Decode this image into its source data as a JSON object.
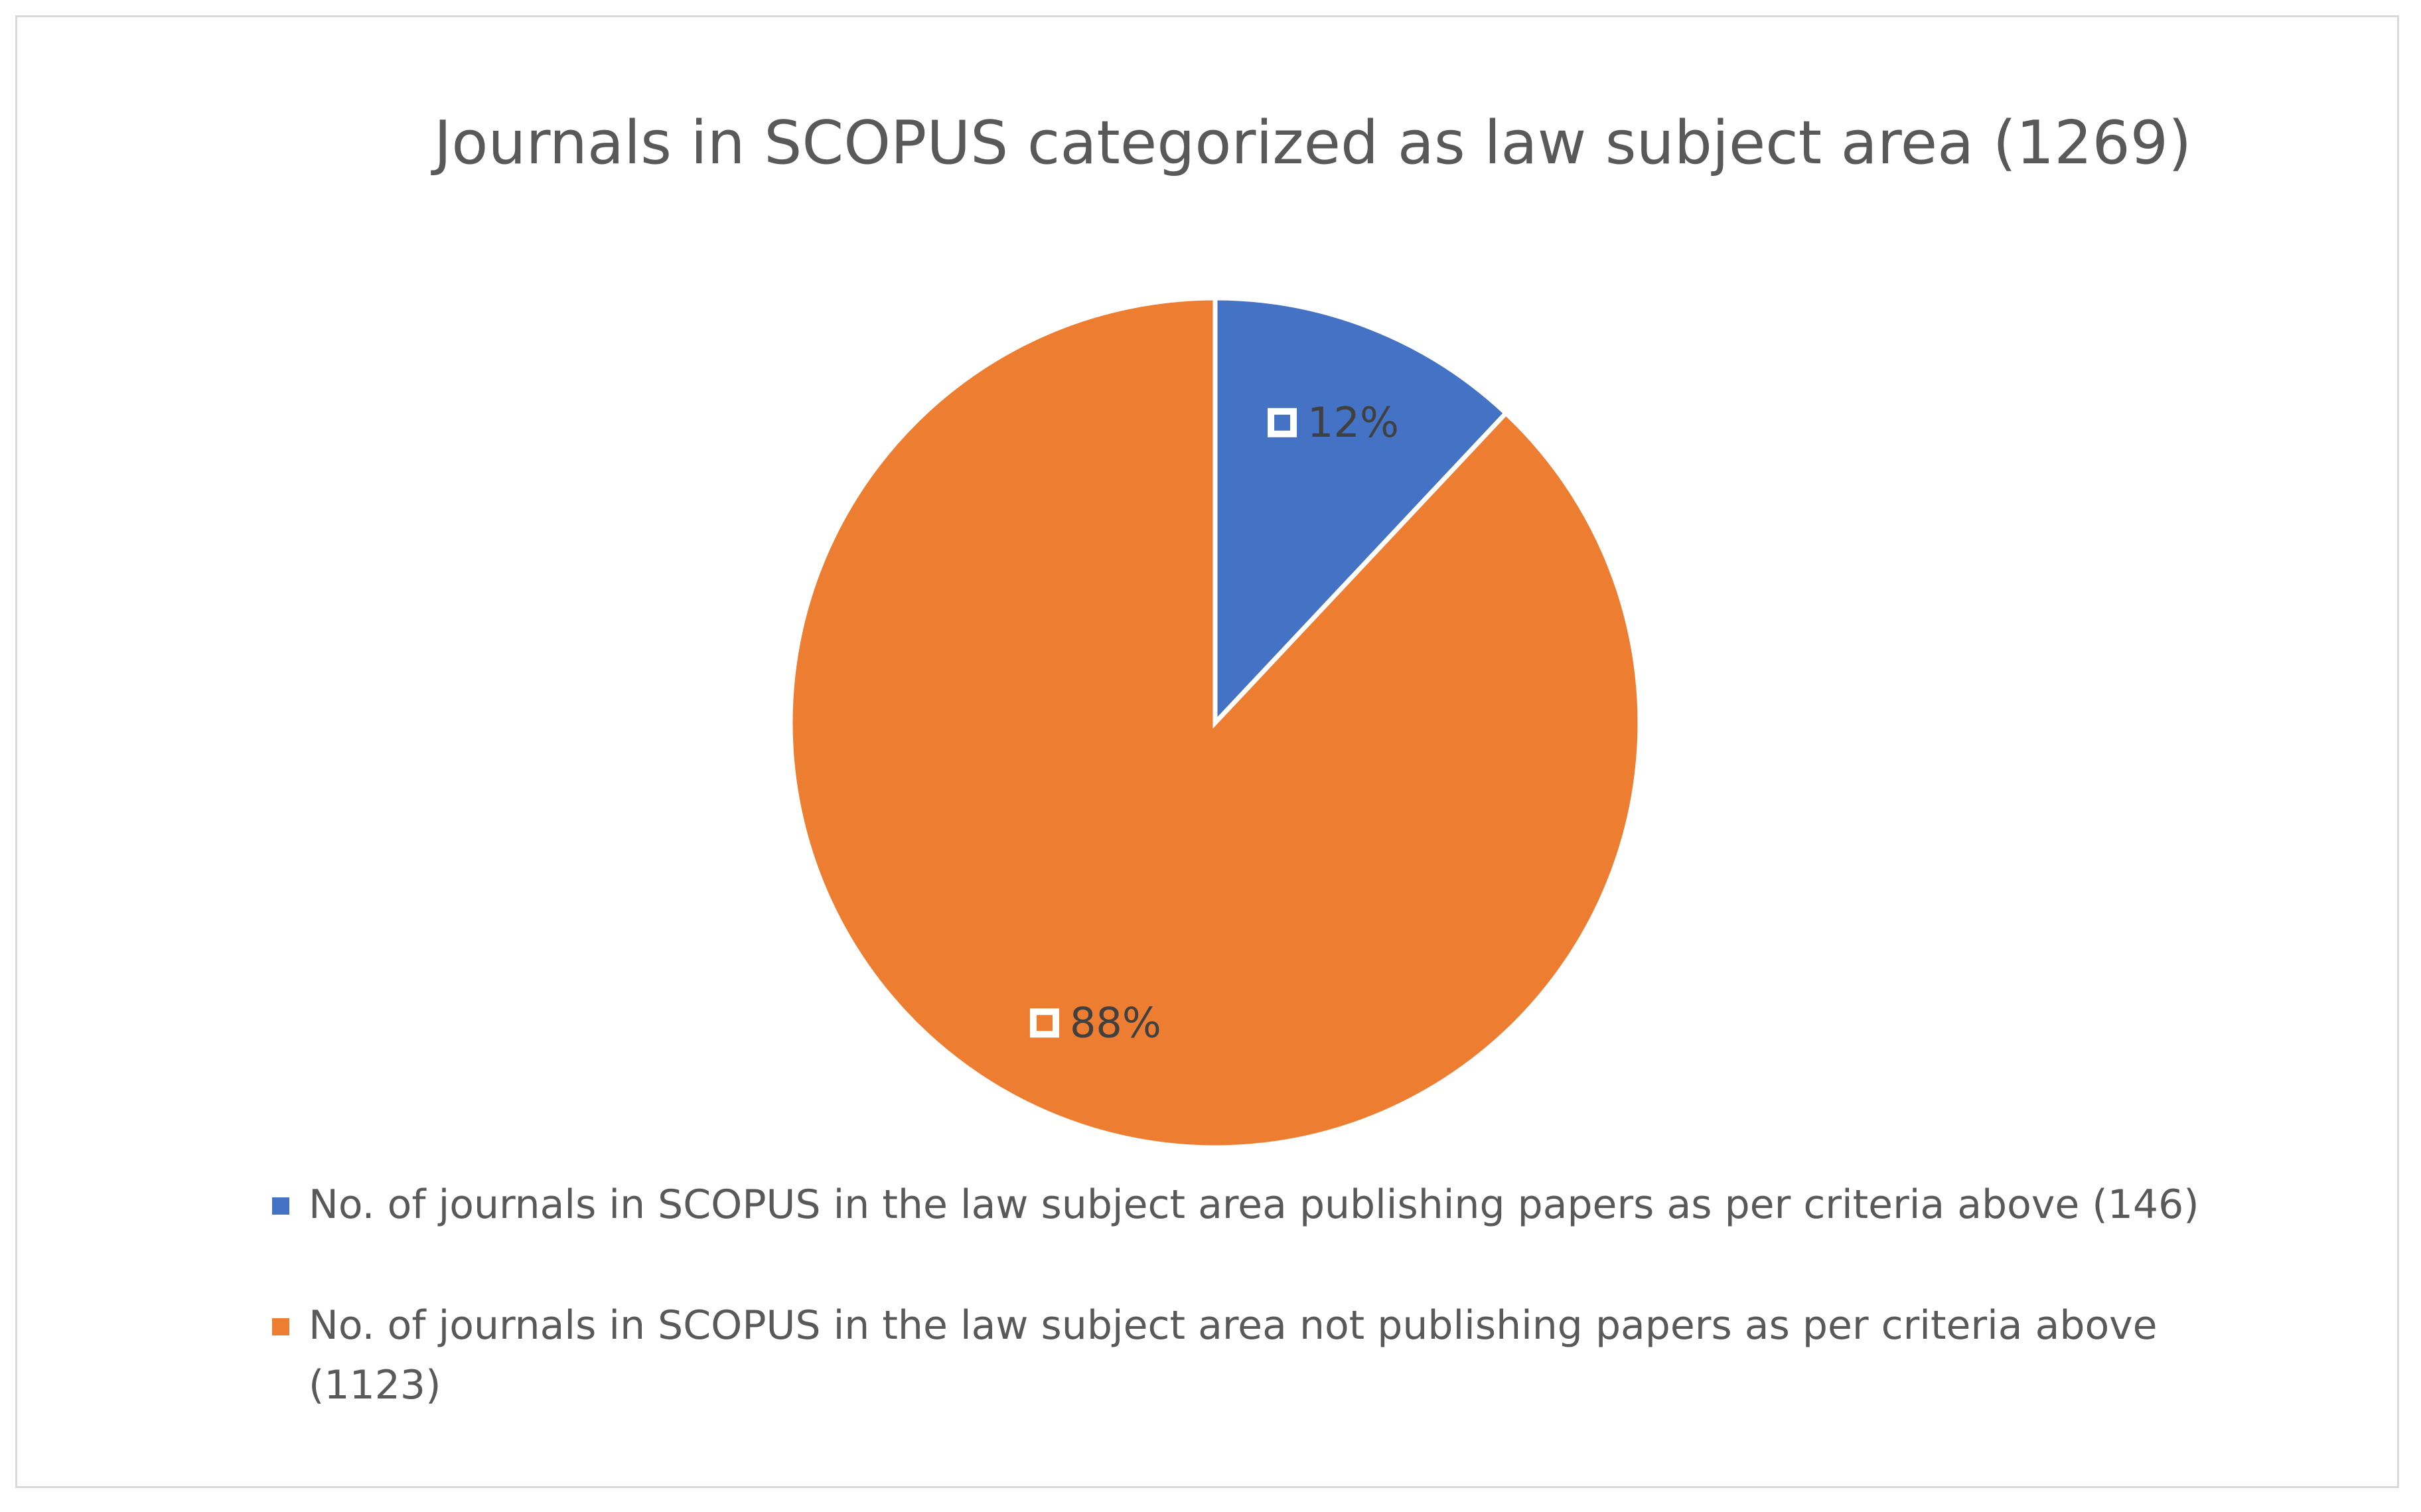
{
  "chart_data": {
    "type": "pie",
    "title": "Journals in SCOPUS categorized as law subject area (1269)",
    "series": [
      {
        "name": "No. of journals in SCOPUS in the law subject area publishing papers as per criteria above (146)",
        "color": "#4472c4",
        "values": [
          12
        ],
        "value_labels": [
          "12%"
        ]
      },
      {
        "name": "No. of journals in SCOPUS in the law subject area not publishing papers as per criteria above (1123)",
        "color": "#ed7d31",
        "values": [
          88
        ],
        "value_labels": [
          "88%"
        ]
      }
    ],
    "legend": "bottom"
  }
}
